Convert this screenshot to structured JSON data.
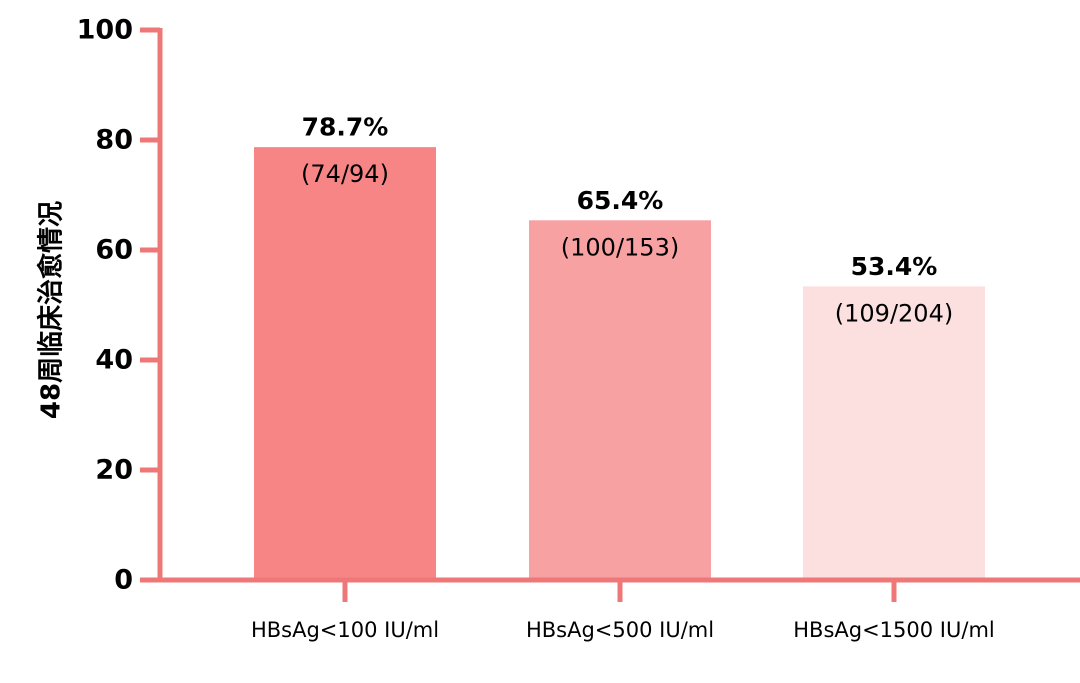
{
  "chart_data": {
    "type": "bar",
    "title": "",
    "xlabel": "",
    "ylabel": "48周临床治愈情况",
    "ylim": [
      0,
      100
    ],
    "yticks": [
      0,
      20,
      40,
      60,
      80,
      100
    ],
    "grid": false,
    "categories": [
      "HBsAg<100 IU/ml",
      "HBsAg<500 IU/ml",
      "HBsAg<1500 IU/ml"
    ],
    "values": [
      78.7,
      65.4,
      53.4
    ],
    "data_labels": [
      "78.7%",
      "65.4%",
      "53.4%"
    ],
    "sub_labels": [
      "(74/94)",
      "(100/153)",
      "(109/204)"
    ],
    "bar_colors": [
      "#f78586",
      "#f8a1a2",
      "#fce0e0"
    ],
    "axis_color": "#ee7878"
  }
}
